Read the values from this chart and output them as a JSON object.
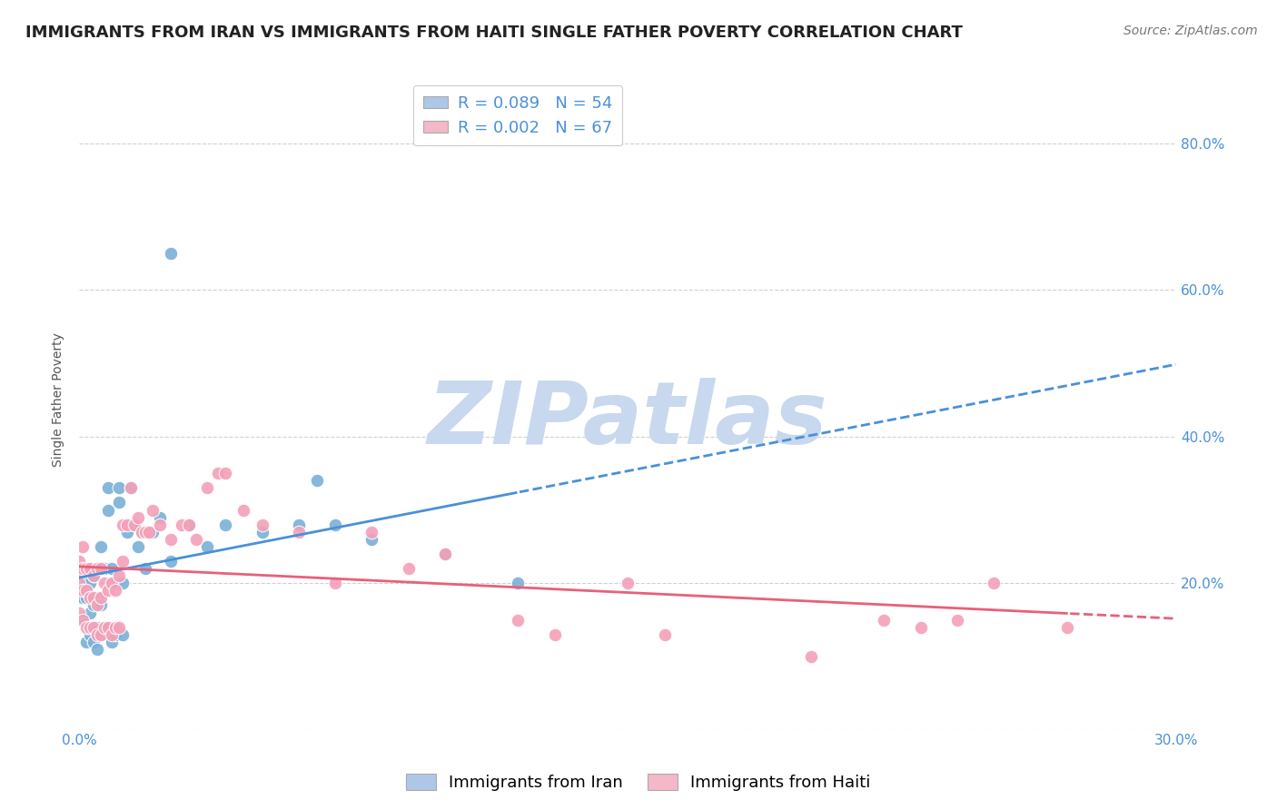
{
  "title": "IMMIGRANTS FROM IRAN VS IMMIGRANTS FROM HAITI SINGLE FATHER POVERTY CORRELATION CHART",
  "source": "Source: ZipAtlas.com",
  "ylabel": "Single Father Poverty",
  "legend_iran": {
    "R": 0.089,
    "N": 54,
    "color": "#aec6e8"
  },
  "legend_haiti": {
    "R": 0.002,
    "N": 67,
    "color": "#f4b8c8"
  },
  "iran_scatter_color": "#7ab0d8",
  "haiti_scatter_color": "#f4a0b8",
  "iran_line_color": "#4a90d9",
  "haiti_line_color": "#e8607a",
  "xlim": [
    0.0,
    0.3
  ],
  "ylim": [
    0.0,
    0.9
  ],
  "background_color": "#ffffff",
  "grid_color": "#d0d0d0",
  "title_fontsize": 13,
  "source_fontsize": 10,
  "axis_label_fontsize": 10,
  "tick_label_fontsize": 11,
  "legend_fontsize": 13,
  "watermark": "ZIPatlas",
  "watermark_color": "#c8d8ee",
  "watermark_fontsize": 70,
  "iran_x": [
    0.0,
    0.0,
    0.001,
    0.001,
    0.001,
    0.001,
    0.002,
    0.002,
    0.002,
    0.003,
    0.003,
    0.003,
    0.004,
    0.004,
    0.004,
    0.005,
    0.005,
    0.005,
    0.005,
    0.006,
    0.006,
    0.006,
    0.007,
    0.007,
    0.008,
    0.008,
    0.009,
    0.009,
    0.01,
    0.01,
    0.011,
    0.011,
    0.012,
    0.012,
    0.013,
    0.014,
    0.015,
    0.016,
    0.017,
    0.018,
    0.02,
    0.022,
    0.025,
    0.03,
    0.035,
    0.04,
    0.05,
    0.06,
    0.065,
    0.07,
    0.08,
    0.1,
    0.12,
    0.025
  ],
  "iran_y": [
    0.18,
    0.2,
    0.15,
    0.18,
    0.21,
    0.22,
    0.12,
    0.18,
    0.2,
    0.13,
    0.16,
    0.2,
    0.12,
    0.17,
    0.21,
    0.11,
    0.14,
    0.18,
    0.22,
    0.13,
    0.17,
    0.25,
    0.14,
    0.22,
    0.3,
    0.33,
    0.12,
    0.22,
    0.13,
    0.2,
    0.31,
    0.33,
    0.13,
    0.2,
    0.27,
    0.33,
    0.28,
    0.25,
    0.27,
    0.22,
    0.27,
    0.29,
    0.23,
    0.28,
    0.25,
    0.28,
    0.27,
    0.28,
    0.34,
    0.28,
    0.26,
    0.24,
    0.2,
    0.65
  ],
  "haiti_x": [
    0.0,
    0.0,
    0.0,
    0.001,
    0.001,
    0.001,
    0.001,
    0.002,
    0.002,
    0.002,
    0.003,
    0.003,
    0.003,
    0.004,
    0.004,
    0.004,
    0.005,
    0.005,
    0.005,
    0.006,
    0.006,
    0.006,
    0.007,
    0.007,
    0.008,
    0.008,
    0.009,
    0.009,
    0.01,
    0.01,
    0.011,
    0.011,
    0.012,
    0.012,
    0.013,
    0.014,
    0.015,
    0.016,
    0.017,
    0.018,
    0.019,
    0.02,
    0.022,
    0.025,
    0.028,
    0.03,
    0.032,
    0.035,
    0.038,
    0.04,
    0.045,
    0.05,
    0.06,
    0.07,
    0.08,
    0.09,
    0.1,
    0.12,
    0.13,
    0.15,
    0.16,
    0.2,
    0.22,
    0.23,
    0.24,
    0.25,
    0.27
  ],
  "haiti_y": [
    0.16,
    0.2,
    0.23,
    0.15,
    0.19,
    0.22,
    0.25,
    0.14,
    0.19,
    0.22,
    0.14,
    0.18,
    0.22,
    0.14,
    0.18,
    0.21,
    0.13,
    0.17,
    0.22,
    0.13,
    0.18,
    0.22,
    0.14,
    0.2,
    0.14,
    0.19,
    0.13,
    0.2,
    0.14,
    0.19,
    0.14,
    0.21,
    0.23,
    0.28,
    0.28,
    0.33,
    0.28,
    0.29,
    0.27,
    0.27,
    0.27,
    0.3,
    0.28,
    0.26,
    0.28,
    0.28,
    0.26,
    0.33,
    0.35,
    0.35,
    0.3,
    0.28,
    0.27,
    0.2,
    0.27,
    0.22,
    0.24,
    0.15,
    0.13,
    0.2,
    0.13,
    0.1,
    0.15,
    0.14,
    0.15,
    0.2,
    0.14
  ]
}
